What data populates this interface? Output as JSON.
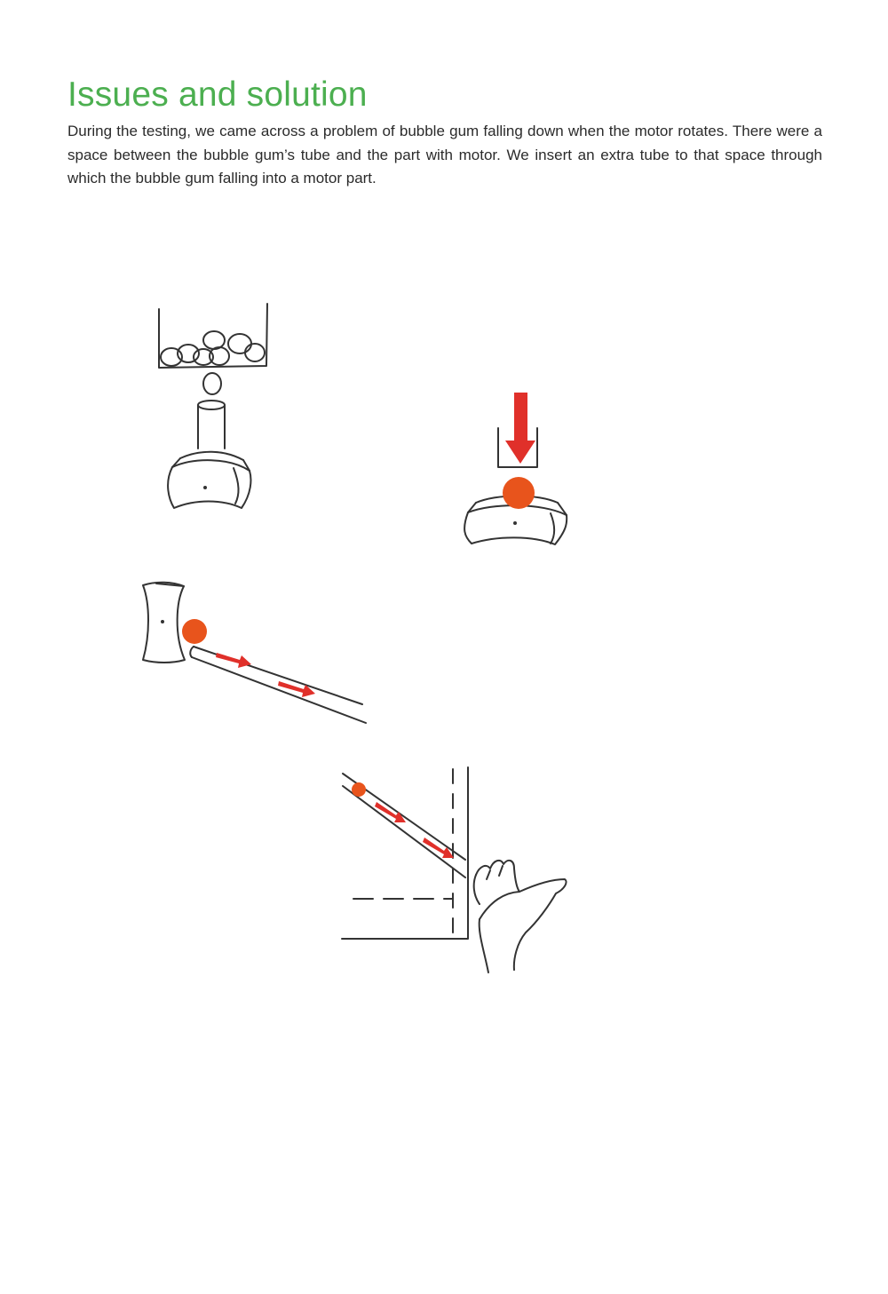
{
  "heading": "Issues and solution",
  "body": "During the testing, we came across a problem of bubble gum falling down when the motor rotates. There were a space between the bubble gum’s tube and the part with motor. We insert an extra tube to that space through which the bubble gum falling into a motor part.",
  "colors": {
    "heading": "#4caf50",
    "gum": "#e8541c",
    "arrow": "#e0302a",
    "ink": "#333333"
  }
}
